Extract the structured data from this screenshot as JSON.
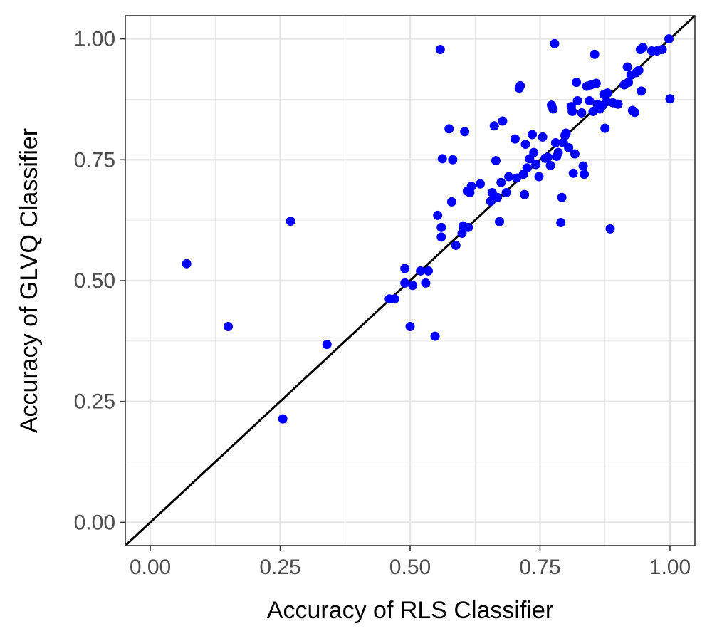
{
  "chart_data": {
    "type": "scatter",
    "title": "",
    "xlabel": "Accuracy of RLS Classifier",
    "ylabel": "Accuracy of GLVQ Classifier",
    "xlim": [
      -0.048,
      1.048
    ],
    "ylim": [
      -0.048,
      1.048
    ],
    "x_ticks": [
      0.0,
      0.25,
      0.5,
      0.75,
      1.0
    ],
    "x_tick_labels": [
      "0.00",
      "0.25",
      "0.50",
      "0.75",
      "1.00"
    ],
    "y_ticks": [
      0.0,
      0.25,
      0.5,
      0.75,
      1.0
    ],
    "y_tick_labels": [
      "0.00",
      "0.25",
      "0.50",
      "0.75",
      "1.00"
    ],
    "grid": true,
    "reference_line": {
      "slope": 1,
      "intercept": 0,
      "color": "#000000"
    },
    "point_color": "#0000ff",
    "series": [
      {
        "points": [
          [
            0.07,
            0.535
          ],
          [
            0.15,
            0.405
          ],
          [
            0.255,
            0.214
          ],
          [
            0.27,
            0.623
          ],
          [
            0.34,
            0.368
          ],
          [
            0.46,
            0.462
          ],
          [
            0.47,
            0.462
          ],
          [
            0.49,
            0.525
          ],
          [
            0.49,
            0.495
          ],
          [
            0.5,
            0.405
          ],
          [
            0.505,
            0.49
          ],
          [
            0.52,
            0.52
          ],
          [
            0.53,
            0.495
          ],
          [
            0.535,
            0.52
          ],
          [
            0.548,
            0.385
          ],
          [
            0.553,
            0.635
          ],
          [
            0.558,
            0.978
          ],
          [
            0.56,
            0.61
          ],
          [
            0.56,
            0.59
          ],
          [
            0.562,
            0.752
          ],
          [
            0.575,
            0.814
          ],
          [
            0.58,
            0.663
          ],
          [
            0.582,
            0.75
          ],
          [
            0.588,
            0.573
          ],
          [
            0.6,
            0.598
          ],
          [
            0.602,
            0.613
          ],
          [
            0.605,
            0.808
          ],
          [
            0.61,
            0.685
          ],
          [
            0.612,
            0.61
          ],
          [
            0.615,
            0.682
          ],
          [
            0.618,
            0.695
          ],
          [
            0.635,
            0.7
          ],
          [
            0.655,
            0.664
          ],
          [
            0.658,
            0.682
          ],
          [
            0.662,
            0.82
          ],
          [
            0.665,
            0.748
          ],
          [
            0.668,
            0.672
          ],
          [
            0.672,
            0.622
          ],
          [
            0.675,
            0.703
          ],
          [
            0.678,
            0.83
          ],
          [
            0.685,
            0.682
          ],
          [
            0.69,
            0.715
          ],
          [
            0.702,
            0.793
          ],
          [
            0.705,
            0.712
          ],
          [
            0.71,
            0.898
          ],
          [
            0.712,
            0.903
          ],
          [
            0.718,
            0.72
          ],
          [
            0.72,
            0.678
          ],
          [
            0.722,
            0.782
          ],
          [
            0.725,
            0.733
          ],
          [
            0.73,
            0.752
          ],
          [
            0.735,
            0.802
          ],
          [
            0.738,
            0.765
          ],
          [
            0.742,
            0.74
          ],
          [
            0.748,
            0.715
          ],
          [
            0.755,
            0.797
          ],
          [
            0.76,
            0.753
          ],
          [
            0.765,
            0.755
          ],
          [
            0.77,
            0.738
          ],
          [
            0.772,
            0.863
          ],
          [
            0.775,
            0.855
          ],
          [
            0.778,
            0.99
          ],
          [
            0.78,
            0.785
          ],
          [
            0.782,
            0.757
          ],
          [
            0.785,
            0.765
          ],
          [
            0.79,
            0.62
          ],
          [
            0.792,
            0.672
          ],
          [
            0.795,
            0.785
          ],
          [
            0.798,
            0.8
          ],
          [
            0.8,
            0.805
          ],
          [
            0.805,
            0.775
          ],
          [
            0.81,
            0.86
          ],
          [
            0.812,
            0.85
          ],
          [
            0.814,
            0.722
          ],
          [
            0.817,
            0.762
          ],
          [
            0.82,
            0.91
          ],
          [
            0.822,
            0.872
          ],
          [
            0.83,
            0.847
          ],
          [
            0.833,
            0.737
          ],
          [
            0.835,
            0.72
          ],
          [
            0.84,
            0.902
          ],
          [
            0.845,
            0.872
          ],
          [
            0.848,
            0.905
          ],
          [
            0.852,
            0.85
          ],
          [
            0.855,
            0.968
          ],
          [
            0.858,
            0.908
          ],
          [
            0.86,
            0.865
          ],
          [
            0.865,
            0.855
          ],
          [
            0.87,
            0.862
          ],
          [
            0.873,
            0.885
          ],
          [
            0.875,
            0.815
          ],
          [
            0.878,
            0.87
          ],
          [
            0.88,
            0.888
          ],
          [
            0.885,
            0.607
          ],
          [
            0.89,
            0.868
          ],
          [
            0.9,
            0.865
          ],
          [
            0.912,
            0.905
          ],
          [
            0.918,
            0.942
          ],
          [
            0.92,
            0.91
          ],
          [
            0.925,
            0.925
          ],
          [
            0.928,
            0.852
          ],
          [
            0.932,
            0.848
          ],
          [
            0.935,
            0.93
          ],
          [
            0.94,
            0.935
          ],
          [
            0.943,
            0.978
          ],
          [
            0.945,
            0.892
          ],
          [
            0.948,
            0.982
          ],
          [
            0.965,
            0.975
          ],
          [
            0.975,
            0.975
          ],
          [
            0.985,
            0.978
          ],
          [
            0.998,
            1.0
          ],
          [
            1.0,
            0.876
          ]
        ]
      }
    ]
  }
}
